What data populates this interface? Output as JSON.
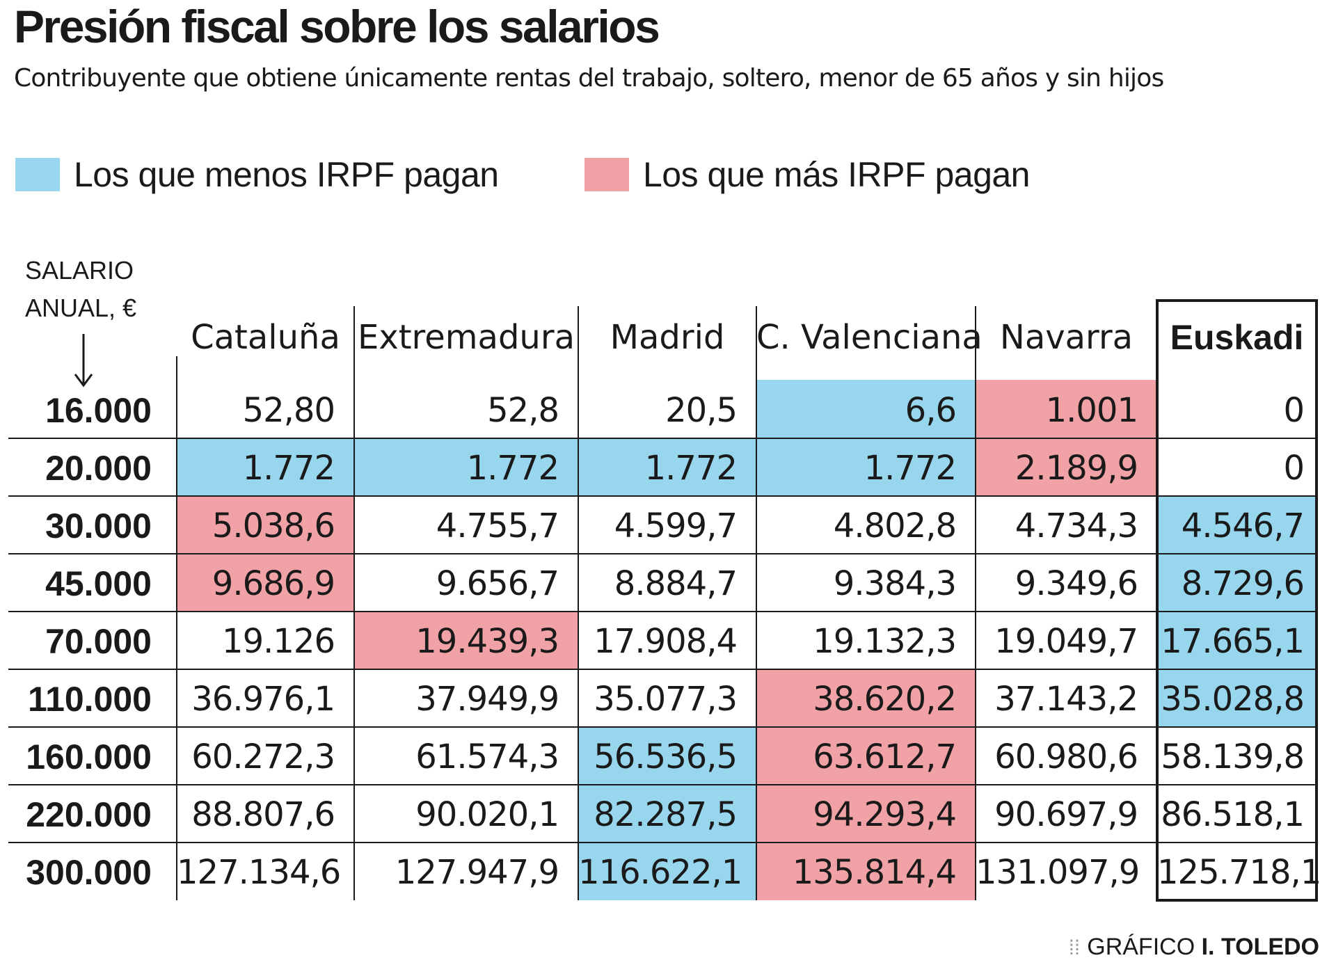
{
  "chart_data": {
    "type": "table",
    "title": "Presión fiscal sobre los salarios",
    "subtitle": "Contribuyente que obtiene únicamente rentas del trabajo, soltero, menor de 65 años y sin hijos",
    "legend": [
      {
        "label": "Los que menos IRPF pagan",
        "color": "#98d6ee"
      },
      {
        "label": "Los que más IRPF pagan",
        "color": "#f0a2a6"
      }
    ],
    "row_header": [
      "SALARIO",
      "ANUAL, €"
    ],
    "columns": [
      "Cataluña",
      "Extremadura",
      "Madrid",
      "C. Valenciana",
      "Navarra",
      "Euskadi"
    ],
    "highlighted_column": "Euskadi",
    "rows": [
      {
        "salary": "16.000",
        "values": [
          "52,80",
          "52,8",
          "20,5",
          "6,6",
          "1.001",
          "0"
        ],
        "marks": [
          "",
          "",
          "",
          "min",
          "max",
          ""
        ]
      },
      {
        "salary": "20.000",
        "values": [
          "1.772",
          "1.772",
          "1.772",
          "1.772",
          "2.189,9",
          "0"
        ],
        "marks": [
          "min",
          "min",
          "min",
          "min",
          "max",
          ""
        ]
      },
      {
        "salary": "30.000",
        "values": [
          "5.038,6",
          "4.755,7",
          "4.599,7",
          "4.802,8",
          "4.734,3",
          "4.546,7"
        ],
        "marks": [
          "max",
          "",
          "",
          "",
          "",
          "min"
        ]
      },
      {
        "salary": "45.000",
        "values": [
          "9.686,9",
          "9.656,7",
          "8.884,7",
          "9.384,3",
          "9.349,6",
          "8.729,6"
        ],
        "marks": [
          "max",
          "",
          "",
          "",
          "",
          "min"
        ]
      },
      {
        "salary": "70.000",
        "values": [
          "19.126",
          "19.439,3",
          "17.908,4",
          "19.132,3",
          "19.049,7",
          "17.665,1"
        ],
        "marks": [
          "",
          "max",
          "",
          "",
          "",
          "min"
        ]
      },
      {
        "salary": "110.000",
        "values": [
          "36.976,1",
          "37.949,9",
          "35.077,3",
          "38.620,2",
          "37.143,2",
          "35.028,8"
        ],
        "marks": [
          "",
          "",
          "",
          "max",
          "",
          "min"
        ]
      },
      {
        "salary": "160.000",
        "values": [
          "60.272,3",
          "61.574,3",
          "56.536,5",
          "63.612,7",
          "60.980,6",
          "58.139,8"
        ],
        "marks": [
          "",
          "",
          "min",
          "max",
          "",
          ""
        ]
      },
      {
        "salary": "220.000",
        "values": [
          "88.807,6",
          "90.020,1",
          "82.287,5",
          "94.293,4",
          "90.697,9",
          "86.518,1"
        ],
        "marks": [
          "",
          "",
          "min",
          "max",
          "",
          ""
        ]
      },
      {
        "salary": "300.000",
        "values": [
          "127.134,6",
          "127.947,9",
          "116.622,1",
          "135.814,4",
          "131.097,9",
          "125.718,1"
        ],
        "marks": [
          "",
          "",
          "min",
          "max",
          "",
          ""
        ]
      }
    ]
  },
  "credit": {
    "prefix": "GRÁFICO",
    "author": "I. TOLEDO"
  }
}
